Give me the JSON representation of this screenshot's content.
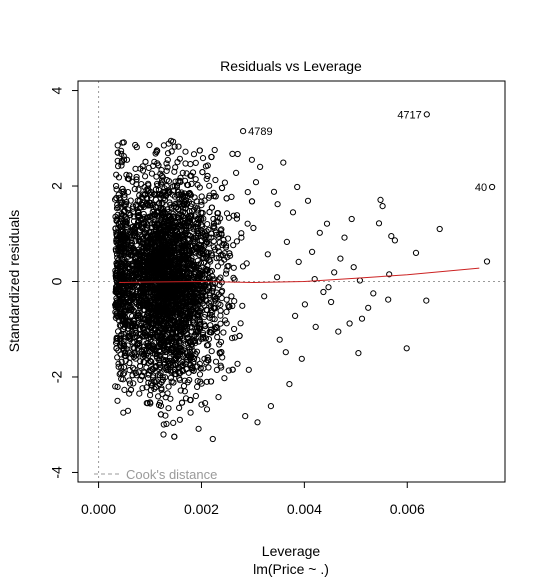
{
  "chart_data": {
    "type": "scatter",
    "title": "Residuals vs Leverage",
    "xlabel": "Leverage",
    "xsublabel": "lm(Price ~ .)",
    "ylabel": "Standardized residuals",
    "xlim": [
      -0.0004,
      0.0079
    ],
    "ylim": [
      -4.2,
      4.2
    ],
    "xticks": [
      0.0,
      0.002,
      0.004,
      0.006
    ],
    "xtick_labels": [
      "0.000",
      "0.002",
      "0.004",
      "0.006"
    ],
    "yticks": [
      -4,
      -2,
      0,
      2,
      4
    ],
    "ytick_labels": [
      "-4",
      "-2",
      "0",
      "2",
      "4"
    ],
    "grid": false,
    "legend": {
      "position": "bottom-left",
      "entries": [
        "Cook's distance"
      ]
    },
    "colors": {
      "points": "#000000",
      "smooth": "#cc2222",
      "reference": "#9a9a9a"
    },
    "labeled_points": [
      {
        "label": "4789",
        "x": 0.00281,
        "y": 3.15
      },
      {
        "label": "4717",
        "x": 0.00638,
        "y": 3.5
      },
      {
        "label": "40",
        "x": 0.00765,
        "y": 1.98
      }
    ],
    "smooth_line": {
      "x": [
        0.0004,
        0.001,
        0.002,
        0.003,
        0.004,
        0.005,
        0.006,
        0.0074
      ],
      "y": [
        -0.02,
        -0.01,
        0.0,
        -0.02,
        0.0,
        0.07,
        0.14,
        0.28
      ]
    },
    "cluster": {
      "count": 3600,
      "x_center": 0.0011,
      "x_spread": 0.0006,
      "x_min": 0.00032,
      "y_sd": 1.05
    },
    "outer_points": [
      {
        "x": 0.00755,
        "y": 0.42
      },
      {
        "x": 0.00663,
        "y": 1.1
      },
      {
        "x": 0.00637,
        "y": -0.4
      },
      {
        "x": 0.00617,
        "y": 0.6
      },
      {
        "x": 0.00599,
        "y": -1.4
      },
      {
        "x": 0.00576,
        "y": 0.86
      },
      {
        "x": 0.00569,
        "y": 0.95
      },
      {
        "x": 0.00565,
        "y": 0.15
      },
      {
        "x": 0.00563,
        "y": -0.38
      },
      {
        "x": 0.00545,
        "y": 1.22
      },
      {
        "x": 0.00552,
        "y": 1.58
      },
      {
        "x": 0.00548,
        "y": 1.71
      },
      {
        "x": 0.00524,
        "y": -0.55
      },
      {
        "x": 0.00512,
        "y": -0.78
      },
      {
        "x": 0.00508,
        "y": 0.02
      },
      {
        "x": 0.00505,
        "y": -1.5
      },
      {
        "x": 0.00496,
        "y": 0.3
      },
      {
        "x": 0.00492,
        "y": 1.31
      },
      {
        "x": 0.00488,
        "y": -0.88
      },
      {
        "x": 0.00478,
        "y": 0.92
      },
      {
        "x": 0.00466,
        "y": -1.05
      },
      {
        "x": 0.00458,
        "y": 0.19
      },
      {
        "x": 0.00452,
        "y": -0.43
      },
      {
        "x": 0.00444,
        "y": 1.21
      },
      {
        "x": 0.00437,
        "y": -0.22
      },
      {
        "x": 0.0043,
        "y": 1.02
      },
      {
        "x": 0.00422,
        "y": -0.95
      },
      {
        "x": 0.00415,
        "y": 0.62
      },
      {
        "x": 0.00407,
        "y": 1.69
      },
      {
        "x": 0.00401,
        "y": -0.48
      },
      {
        "x": 0.00395,
        "y": -1.62
      },
      {
        "x": 0.00389,
        "y": 0.41
      },
      {
        "x": 0.00382,
        "y": -0.72
      },
      {
        "x": 0.00378,
        "y": 1.45
      },
      {
        "x": 0.00371,
        "y": -2.15
      },
      {
        "x": 0.00366,
        "y": 0.83
      },
      {
        "x": 0.00359,
        "y": 2.49
      },
      {
        "x": 0.00352,
        "y": -1.22
      },
      {
        "x": 0.00347,
        "y": 0.09
      },
      {
        "x": 0.00341,
        "y": 1.88
      },
      {
        "x": 0.00335,
        "y": -2.61
      },
      {
        "x": 0.00329,
        "y": 0.57
      },
      {
        "x": 0.00322,
        "y": -0.31
      },
      {
        "x": 0.00314,
        "y": 2.4
      },
      {
        "x": 0.00309,
        "y": -2.95
      },
      {
        "x": 0.00301,
        "y": 1.12
      },
      {
        "x": 0.00298,
        "y": 2.55
      },
      {
        "x": 0.00292,
        "y": -1.85
      },
      {
        "x": 0.00288,
        "y": 0.38
      },
      {
        "x": 0.00285,
        "y": -2.82
      },
      {
        "x": 0.00306,
        "y": 2.08
      },
      {
        "x": 0.00348,
        "y": 1.62
      },
      {
        "x": 0.00364,
        "y": -1.48
      },
      {
        "x": 0.00386,
        "y": 1.98
      },
      {
        "x": 0.0042,
        "y": 0.05
      },
      {
        "x": 0.00447,
        "y": -0.12
      },
      {
        "x": 0.0047,
        "y": 0.48
      },
      {
        "x": 0.00534,
        "y": -0.25
      }
    ]
  }
}
